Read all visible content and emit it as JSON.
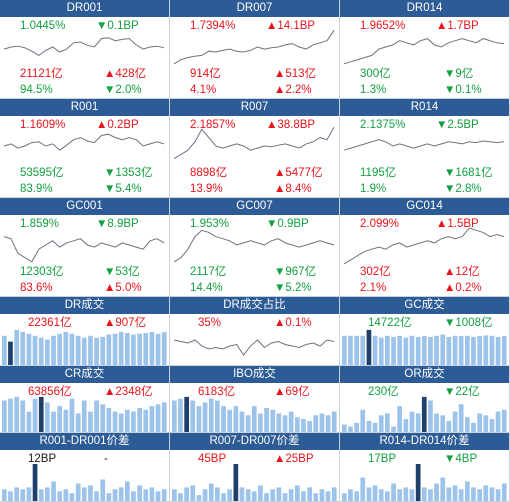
{
  "colors": {
    "header_bg": "#2c5b95",
    "up": "#e8141b",
    "down": "#12a140",
    "line": "#6b7280",
    "bar": "#9cc3ea",
    "bar_highlight": "#1f3f6a"
  },
  "panels": [
    {
      "title": "DR001",
      "rate": "1.0445%",
      "rate_color": "down",
      "change": "▼0.1BP",
      "change_color": "down",
      "volume": "21121亿",
      "volume_color": "up",
      "vol_change": "▲428亿",
      "vol_change_color": "up",
      "share": "94.5%",
      "share_color": "down",
      "share_change": "▼2.0%",
      "share_change_color": "down",
      "line": [
        0.55,
        0.5,
        0.48,
        0.52,
        0.6,
        0.7,
        0.58,
        0.5,
        0.62,
        0.55,
        0.4,
        0.38,
        0.46,
        0.5,
        0.3,
        0.28,
        0.35,
        0.32,
        0.3,
        0.45,
        0.55,
        0.5,
        0.48,
        0.52
      ]
    },
    {
      "title": "DR007",
      "rate": "1.7394%",
      "rate_color": "up",
      "change": "▲14.1BP",
      "change_color": "up",
      "volume": "914亿",
      "volume_color": "up",
      "vol_change": "▲513亿",
      "vol_change_color": "up",
      "share": "4.1%",
      "share_color": "up",
      "share_change": "▲2.2%",
      "share_change_color": "up",
      "line": [
        0.9,
        0.8,
        0.75,
        0.72,
        0.7,
        0.6,
        0.62,
        0.58,
        0.55,
        0.6,
        0.62,
        0.58,
        0.5,
        0.55,
        0.52,
        0.5,
        0.45,
        0.42,
        0.5,
        0.55,
        0.45,
        0.4,
        0.35,
        0.1
      ]
    },
    {
      "title": "DR014",
      "rate": "1.9652%",
      "rate_color": "up",
      "change": "▲1.7BP",
      "change_color": "up",
      "volume": "300亿",
      "volume_color": "down",
      "vol_change": "▼9亿",
      "vol_change_color": "down",
      "share": "1.3%",
      "share_color": "down",
      "share_change": "▼0.1%",
      "share_change_color": "down",
      "line": [
        0.9,
        0.85,
        0.8,
        0.75,
        0.7,
        0.55,
        0.5,
        0.45,
        0.35,
        0.4,
        0.45,
        0.35,
        0.3,
        0.45,
        0.5,
        0.4,
        0.35,
        0.3,
        0.35,
        0.4,
        0.3,
        0.35,
        0.4,
        0.42
      ]
    },
    {
      "title": "R001",
      "rate": "1.1609%",
      "rate_color": "up",
      "change": "▲0.2BP",
      "change_color": "up",
      "volume": "53595亿",
      "volume_color": "down",
      "vol_change": "▼1353亿",
      "vol_change_color": "down",
      "share": "83.9%",
      "share_color": "down",
      "share_change": "▼5.4%",
      "share_change_color": "down",
      "line": [
        0.5,
        0.45,
        0.55,
        0.5,
        0.42,
        0.4,
        0.5,
        0.45,
        0.6,
        0.48,
        0.35,
        0.3,
        0.38,
        0.42,
        0.25,
        0.22,
        0.3,
        0.35,
        0.3,
        0.35,
        0.5,
        0.45,
        0.4,
        0.45
      ]
    },
    {
      "title": "R007",
      "rate": "2.1857%",
      "rate_color": "up",
      "change": "▲38.8BP",
      "change_color": "up",
      "volume": "8898亿",
      "volume_color": "up",
      "vol_change": "▲5477亿",
      "vol_change_color": "up",
      "share": "13.9%",
      "share_color": "up",
      "share_change": "▲8.4%",
      "share_change_color": "up",
      "line": [
        0.8,
        0.7,
        0.6,
        0.4,
        0.1,
        0.3,
        0.5,
        0.55,
        0.5,
        0.45,
        0.5,
        0.6,
        0.55,
        0.5,
        0.52,
        0.48,
        0.45,
        0.5,
        0.55,
        0.45,
        0.4,
        0.3,
        0.35,
        0.05
      ]
    },
    {
      "title": "R014",
      "rate": "2.1375%",
      "rate_color": "down",
      "change": "▼2.5BP",
      "change_color": "down",
      "volume": "1195亿",
      "volume_color": "down",
      "vol_change": "▼1681亿",
      "vol_change_color": "down",
      "share": "1.9%",
      "share_color": "down",
      "share_change": "▼2.8%",
      "share_change_color": "down",
      "line": [
        0.6,
        0.55,
        0.5,
        0.45,
        0.4,
        0.35,
        0.4,
        0.5,
        0.45,
        0.5,
        0.55,
        0.5,
        0.45,
        0.5,
        0.45,
        0.4,
        0.42,
        0.45,
        0.4,
        0.42,
        0.38,
        0.4,
        0.42,
        0.4
      ]
    },
    {
      "title": "GC001",
      "rate": "1.859%",
      "rate_color": "down",
      "change": "▼8.9BP",
      "change_color": "down",
      "volume": "12303亿",
      "volume_color": "down",
      "vol_change": "▼53亿",
      "vol_change_color": "down",
      "share": "83.6%",
      "share_color": "up",
      "share_change": "▲5.0%",
      "share_change_color": "up",
      "line": [
        0.3,
        0.35,
        0.7,
        0.8,
        0.9,
        0.6,
        0.5,
        0.4,
        0.55,
        0.45,
        0.4,
        0.35,
        0.5,
        0.55,
        0.45,
        0.5,
        0.55,
        0.45,
        0.5,
        0.55,
        0.6,
        0.4,
        0.35,
        0.45
      ]
    },
    {
      "title": "GC007",
      "rate": "1.953%",
      "rate_color": "down",
      "change": "▼0.9BP",
      "change_color": "down",
      "volume": "2117亿",
      "volume_color": "down",
      "vol_change": "▼967亿",
      "vol_change_color": "down",
      "share": "14.4%",
      "share_color": "down",
      "share_change": "▼5.2%",
      "share_change_color": "down",
      "line": [
        0.9,
        0.8,
        0.6,
        0.3,
        0.15,
        0.2,
        0.3,
        0.35,
        0.4,
        0.5,
        0.45,
        0.4,
        0.45,
        0.5,
        0.4,
        0.35,
        0.45,
        0.5,
        0.55,
        0.5,
        0.45,
        0.4,
        0.45,
        0.5
      ]
    },
    {
      "title": "GC014",
      "rate": "2.099%",
      "rate_color": "up",
      "change": "▲1.5BP",
      "change_color": "up",
      "volume": "302亿",
      "volume_color": "up",
      "vol_change": "▲12亿",
      "vol_change_color": "up",
      "share": "2.1%",
      "share_color": "up",
      "share_change": "▲0.2%",
      "share_change_color": "up",
      "line": [
        0.95,
        0.85,
        0.75,
        0.65,
        0.6,
        0.55,
        0.6,
        0.5,
        0.45,
        0.55,
        0.5,
        0.45,
        0.4,
        0.45,
        0.35,
        0.3,
        0.35,
        0.3,
        0.1,
        0.15,
        0.2,
        0.3,
        0.25,
        0.3
      ]
    }
  ],
  "summary": [
    {
      "title": "DR成交",
      "value": "22361亿",
      "value_color": "up",
      "change": "▲907亿",
      "change_color": "up",
      "kind": "bar",
      "highlight": 1,
      "bars": [
        0.75,
        0.6,
        0.9,
        0.85,
        0.8,
        0.75,
        0.7,
        0.65,
        0.75,
        0.8,
        0.85,
        0.8,
        0.75,
        0.7,
        0.75,
        0.7,
        0.72,
        0.78,
        0.8,
        0.85,
        0.82,
        0.78,
        0.8,
        0.82,
        0.85,
        0.8,
        0.84
      ]
    },
    {
      "title": "DR成交占比",
      "value": "35%",
      "value_color": "up",
      "change": "▲0.1%",
      "change_color": "up",
      "kind": "line",
      "line": [
        0.3,
        0.35,
        0.4,
        0.3,
        0.5,
        0.6,
        0.55,
        0.6,
        0.5,
        0.45,
        0.8,
        0.5,
        0.3,
        0.55,
        0.4,
        0.35,
        0.45,
        0.5,
        0.55,
        0.45,
        0.4,
        0.5,
        0.3,
        0.35
      ]
    },
    {
      "title": "GC成交",
      "value": "14722亿",
      "value_color": "down",
      "change": "▼1008亿",
      "change_color": "down",
      "kind": "bar",
      "highlight": 4,
      "bars": [
        0.75,
        0.75,
        0.75,
        0.75,
        0.9,
        0.75,
        0.7,
        0.75,
        0.72,
        0.75,
        0.7,
        0.75,
        0.72,
        0.74,
        0.72,
        0.75,
        0.78,
        0.72,
        0.75,
        0.74,
        0.75,
        0.72,
        0.74,
        0.76,
        0.75,
        0.72,
        0.74
      ]
    },
    {
      "title": "CR成交",
      "value": "63856亿",
      "value_color": "up",
      "change": "▲2348亿",
      "change_color": "up",
      "kind": "bar",
      "highlight": 6,
      "bars": [
        0.85,
        0.9,
        0.95,
        0.85,
        0.55,
        0.9,
        0.95,
        0.8,
        0.55,
        0.7,
        0.6,
        0.9,
        0.5,
        0.85,
        0.55,
        0.85,
        0.75,
        0.65,
        0.55,
        0.5,
        0.6,
        0.55,
        0.65,
        0.6,
        0.7,
        0.75,
        0.8
      ]
    },
    {
      "title": "IBO成交",
      "value": "6183亿",
      "value_color": "up",
      "change": "▲69亿",
      "change_color": "up",
      "kind": "bar",
      "highlight": 2,
      "bars": [
        0.85,
        0.9,
        0.95,
        0.85,
        0.7,
        0.8,
        0.9,
        0.85,
        0.7,
        0.6,
        0.7,
        0.55,
        0.45,
        0.7,
        0.5,
        0.65,
        0.6,
        0.5,
        0.45,
        0.55,
        0.4,
        0.35,
        0.3,
        0.45,
        0.5,
        0.45,
        0.55
      ]
    },
    {
      "title": "OR成交",
      "value": "230亿",
      "value_color": "down",
      "change": "▼22亿",
      "change_color": "down",
      "kind": "bar",
      "highlight": 13,
      "bars": [
        0.2,
        0.15,
        0.25,
        0.6,
        0.3,
        0.25,
        0.45,
        0.5,
        0.15,
        0.7,
        0.35,
        0.55,
        0.5,
        0.95,
        0.85,
        0.5,
        0.45,
        0.3,
        0.55,
        0.75,
        0.4,
        0.25,
        0.5,
        0.45,
        0.35,
        0.55,
        0.6
      ]
    },
    {
      "title": "R001-DR001价差",
      "value": "12BP",
      "value_color": "blk",
      "change": "-",
      "change_color": "blk",
      "kind": "bar",
      "highlight": 5,
      "bars": [
        0.3,
        0.25,
        0.35,
        0.3,
        0.35,
        0.95,
        0.3,
        0.35,
        0.5,
        0.25,
        0.3,
        0.2,
        0.45,
        0.35,
        0.4,
        0.25,
        0.55,
        0.2,
        0.3,
        0.35,
        0.5,
        0.25,
        0.4,
        0.3,
        0.35,
        0.25,
        0.3
      ]
    },
    {
      "title": "R007-DR007价差",
      "value": "45BP",
      "value_color": "up",
      "change": "▲25BP",
      "change_color": "up",
      "kind": "bar",
      "highlight": 10,
      "bars": [
        0.3,
        0.2,
        0.35,
        0.4,
        0.15,
        0.3,
        0.45,
        0.35,
        0.2,
        0.3,
        0.95,
        0.35,
        0.3,
        0.25,
        0.4,
        0.2,
        0.3,
        0.35,
        0.2,
        0.3,
        0.4,
        0.25,
        0.35,
        0.2,
        0.3,
        0.25,
        0.35
      ]
    },
    {
      "title": "R014-DR014价差",
      "value": "17BP",
      "value_color": "down",
      "change": "▼4BP",
      "change_color": "down",
      "kind": "bar",
      "highlight": 12,
      "bars": [
        0.2,
        0.3,
        0.25,
        0.6,
        0.35,
        0.4,
        0.3,
        0.25,
        0.45,
        0.3,
        0.35,
        0.3,
        0.95,
        0.35,
        0.3,
        0.45,
        0.6,
        0.35,
        0.4,
        0.3,
        0.5,
        0.35,
        0.3,
        0.4,
        0.35,
        0.3,
        0.45
      ]
    }
  ]
}
